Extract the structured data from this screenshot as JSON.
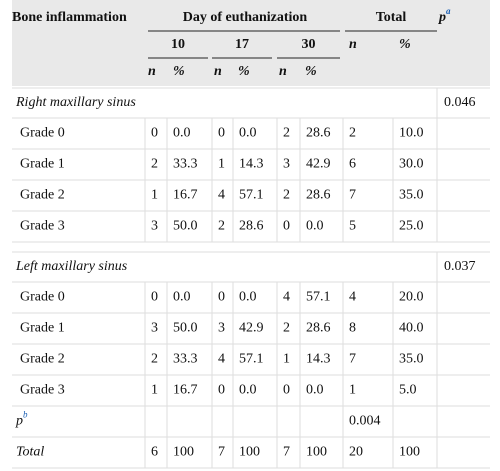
{
  "header": {
    "col1": "Bone inflammation",
    "day_group": "Day of euthanization",
    "total_group": "Total",
    "p": "p",
    "p_sup": "a",
    "days": [
      "10",
      "17",
      "30"
    ],
    "total_sub": [
      "n",
      "%"
    ],
    "day_sub": [
      "n",
      "%",
      "n",
      "%",
      "n",
      "%"
    ]
  },
  "sections": [
    {
      "label": "Right maxillary sinus",
      "p": "0.046",
      "rows": [
        [
          "Grade 0",
          "0",
          "0.0",
          "0",
          "0.0",
          "2",
          "28.6",
          "2",
          "10.0"
        ],
        [
          "Grade 1",
          "2",
          "33.3",
          "1",
          "14.3",
          "3",
          "42.9",
          "6",
          "30.0"
        ],
        [
          "Grade 2",
          "1",
          "16.7",
          "4",
          "57.1",
          "2",
          "28.6",
          "7",
          "35.0"
        ],
        [
          "Grade 3",
          "3",
          "50.0",
          "2",
          "28.6",
          "0",
          "0.0",
          "5",
          "25.0"
        ]
      ]
    },
    {
      "label": "Left maxillary sinus",
      "p": "0.037",
      "rows": [
        [
          "Grade 0",
          "0",
          "0.0",
          "0",
          "0.0",
          "4",
          "57.1",
          "4",
          "20.0"
        ],
        [
          "Grade 1",
          "3",
          "50.0",
          "3",
          "42.9",
          "2",
          "28.6",
          "8",
          "40.0"
        ],
        [
          "Grade 2",
          "2",
          "33.3",
          "4",
          "57.1",
          "1",
          "14.3",
          "7",
          "35.0"
        ],
        [
          "Grade 3",
          "1",
          "16.7",
          "0",
          "0.0",
          "0",
          "0.0",
          "1",
          "5.0"
        ]
      ]
    }
  ],
  "p_row": {
    "label": "p",
    "sup": "b",
    "value": "0.004"
  },
  "total_row": [
    "Total",
    "6",
    "100",
    "7",
    "100",
    "7",
    "100",
    "20",
    "100"
  ]
}
